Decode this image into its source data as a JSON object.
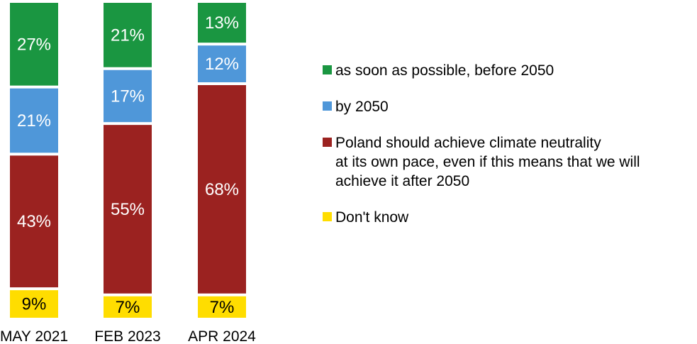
{
  "chart_data": {
    "type": "bar",
    "stacked": true,
    "orientation": "vertical",
    "categories": [
      "MAY 2021",
      "FEB 2023",
      "APR 2024"
    ],
    "series": [
      {
        "name": "as soon as possible, before 2050",
        "color": "#1a9641",
        "values": [
          27,
          21,
          13
        ]
      },
      {
        "name": "by 2050",
        "color": "#4f97d9",
        "values": [
          21,
          17,
          12
        ]
      },
      {
        "name": "Poland should achieve climate neutrality\nat its own pace, even if this means that we will\nachieve it after 2050",
        "color": "#9b2220",
        "values": [
          43,
          55,
          68
        ]
      },
      {
        "name": "Don't know",
        "color": "#ffdd00",
        "values": [
          9,
          7,
          7
        ]
      }
    ],
    "value_labels": [
      [
        "27%",
        "21%",
        "13%"
      ],
      [
        "21%",
        "17%",
        "12%"
      ],
      [
        "43%",
        "55%",
        "68%"
      ],
      [
        "9%",
        "7%",
        "7%"
      ]
    ],
    "label_colors": [
      "#ffffff",
      "#ffffff",
      "#ffffff",
      "#000000"
    ],
    "legend_position": "right",
    "grid": false,
    "ylim": [
      0,
      100
    ]
  }
}
